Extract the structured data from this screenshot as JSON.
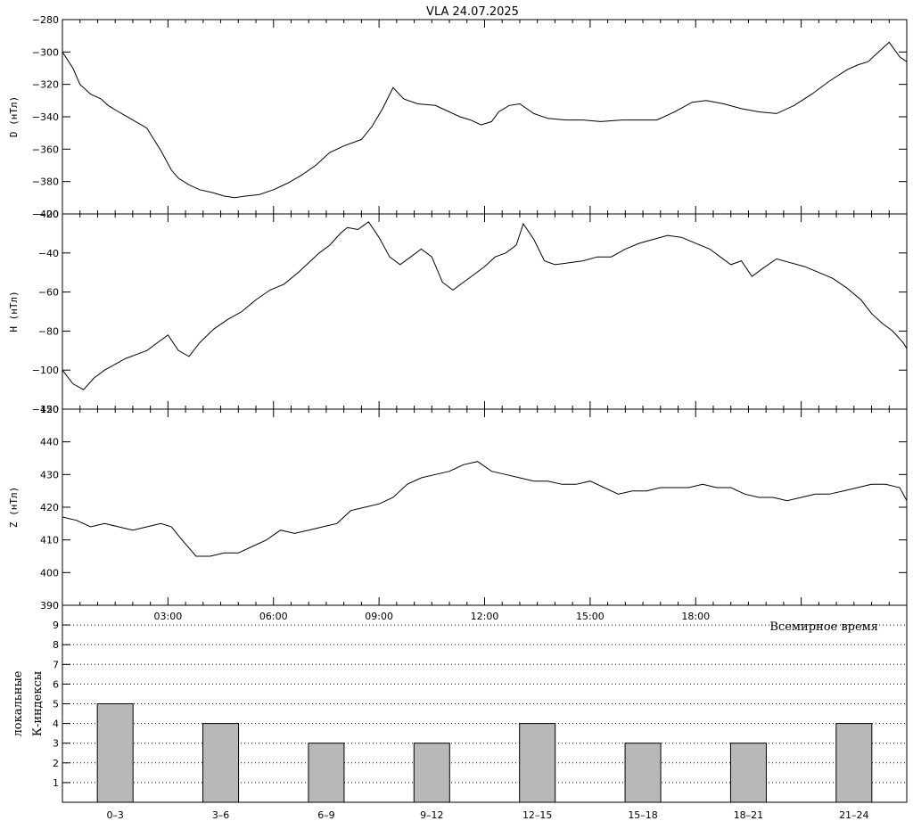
{
  "title": "VLA   24.07.2025",
  "chart_data": [
    {
      "type": "line",
      "ylabel": "D (нТл)",
      "ylim": [
        -400,
        -280
      ],
      "yticks": [
        -400,
        -380,
        -360,
        -340,
        -320,
        -300,
        -280
      ],
      "xlim": [
        0,
        24
      ],
      "x": [
        0,
        0.3,
        0.5,
        0.8,
        1.1,
        1.3,
        1.6,
        2.0,
        2.4,
        2.8,
        3.1,
        3.3,
        3.6,
        3.9,
        4.3,
        4.6,
        4.9,
        5.2,
        5.6,
        6.0,
        6.4,
        6.8,
        7.2,
        7.6,
        8.0,
        8.5,
        8.8,
        9.1,
        9.4,
        9.7,
        10.1,
        10.6,
        11.0,
        11.3,
        11.6,
        11.9,
        12.2,
        12.4,
        12.7,
        13.0,
        13.4,
        13.8,
        14.3,
        14.8,
        15.3,
        15.9,
        16.4,
        16.9,
        17.4,
        17.9,
        18.3,
        18.8,
        19.3,
        19.8,
        20.3,
        20.8,
        21.3,
        21.8,
        22.3,
        22.6,
        22.9,
        23.2,
        23.5,
        23.8,
        24.0
      ],
      "values": [
        -300,
        -310,
        -320,
        -326,
        -329,
        -333,
        -337,
        -342,
        -347,
        -361,
        -373,
        -378,
        -382,
        -385,
        -387,
        -389,
        -390,
        -389,
        -388,
        -385,
        -381,
        -376,
        -370,
        -362,
        -358,
        -354,
        -346,
        -335,
        -322,
        -329,
        -332,
        -333,
        -337,
        -340,
        -342,
        -345,
        -343,
        -337,
        -333,
        -332,
        -338,
        -341,
        -342,
        -342,
        -343,
        -342,
        -342,
        -342,
        -337,
        -331,
        -330,
        -332,
        -335,
        -337,
        -338,
        -333,
        -326,
        -318,
        -311,
        -308,
        -306,
        -300,
        -294,
        -303,
        -306
      ],
      "color": "#000000"
    },
    {
      "type": "line",
      "ylabel": "H (нТл)",
      "ylim": [
        -120,
        -20
      ],
      "yticks": [
        -120,
        -100,
        -80,
        -60,
        -40,
        -20
      ],
      "xlim": [
        0,
        24
      ],
      "x": [
        0,
        0.3,
        0.6,
        0.9,
        1.2,
        1.5,
        1.8,
        2.1,
        2.4,
        2.7,
        3.0,
        3.3,
        3.6,
        3.9,
        4.3,
        4.7,
        5.1,
        5.5,
        5.9,
        6.3,
        6.7,
        7.0,
        7.3,
        7.6,
        7.9,
        8.1,
        8.4,
        8.7,
        9.0,
        9.3,
        9.6,
        9.9,
        10.2,
        10.5,
        10.8,
        11.1,
        11.4,
        11.7,
        12.0,
        12.3,
        12.6,
        12.9,
        13.1,
        13.4,
        13.7,
        14.0,
        14.4,
        14.8,
        15.2,
        15.6,
        16.0,
        16.4,
        16.8,
        17.2,
        17.6,
        18.0,
        18.4,
        18.7,
        19.0,
        19.3,
        19.6,
        19.9,
        20.3,
        20.7,
        21.1,
        21.5,
        21.9,
        22.3,
        22.7,
        23.0,
        23.3,
        23.6,
        23.9,
        24.0
      ],
      "values": [
        -100,
        -107,
        -110,
        -104,
        -100,
        -97,
        -94,
        -92,
        -90,
        -86,
        -82,
        -90,
        -93,
        -86,
        -79,
        -74,
        -70,
        -64,
        -59,
        -56,
        -50,
        -45,
        -40,
        -36,
        -30,
        -27,
        -28,
        -24,
        -32,
        -42,
        -46,
        -42,
        -38,
        -42,
        -55,
        -59,
        -55,
        -51,
        -47,
        -42,
        -40,
        -36,
        -25,
        -33,
        -44,
        -46,
        -45,
        -44,
        -42,
        -42,
        -38,
        -35,
        -33,
        -31,
        -32,
        -35,
        -38,
        -42,
        -46,
        -44,
        -52,
        -48,
        -43,
        -45,
        -47,
        -50,
        -53,
        -58,
        -64,
        -71,
        -76,
        -80,
        -86,
        -89
      ],
      "color": "#000000"
    },
    {
      "type": "line",
      "ylabel": "Z (нТл)",
      "ylim": [
        390,
        450
      ],
      "yticks": [
        390,
        400,
        410,
        420,
        430,
        440,
        450
      ],
      "xlim": [
        0,
        24
      ],
      "xticks": [
        "03:00",
        "06:00",
        "09:00",
        "12:00",
        "15:00",
        "18:00"
      ],
      "xtick_values": [
        3,
        6,
        9,
        12,
        15,
        18
      ],
      "xlabel": "Всемирное время",
      "x": [
        0,
        0.4,
        0.8,
        1.2,
        1.6,
        2.0,
        2.4,
        2.8,
        3.1,
        3.4,
        3.8,
        4.2,
        4.6,
        5.0,
        5.4,
        5.8,
        6.2,
        6.6,
        7.0,
        7.4,
        7.8,
        8.2,
        8.6,
        9.0,
        9.4,
        9.8,
        10.2,
        10.6,
        11.0,
        11.4,
        11.8,
        12.2,
        12.6,
        13.0,
        13.4,
        13.8,
        14.2,
        14.6,
        15.0,
        15.4,
        15.8,
        16.2,
        16.6,
        17.0,
        17.4,
        17.8,
        18.2,
        18.6,
        19.0,
        19.4,
        19.8,
        20.2,
        20.6,
        21.0,
        21.4,
        21.8,
        22.2,
        22.6,
        23.0,
        23.4,
        23.8,
        24.0
      ],
      "values": [
        417,
        416,
        414,
        415,
        414,
        413,
        414,
        415,
        414,
        410,
        405,
        405,
        406,
        406,
        408,
        410,
        413,
        412,
        413,
        414,
        415,
        419,
        420,
        421,
        423,
        427,
        429,
        430,
        431,
        433,
        434,
        431,
        430,
        429,
        428,
        428,
        427,
        427,
        428,
        426,
        424,
        425,
        425,
        426,
        426,
        426,
        427,
        426,
        426,
        424,
        423,
        423,
        422,
        423,
        424,
        424,
        425,
        426,
        427,
        427,
        426,
        422
      ],
      "color": "#000000"
    },
    {
      "type": "bar",
      "ylabel": "К-индексы",
      "ylabel2": "локальные",
      "ylim": [
        0,
        10
      ],
      "yticks": [
        1,
        2,
        3,
        4,
        5,
        6,
        7,
        8,
        9
      ],
      "categories": [
        "0–3",
        "3–6",
        "6–9",
        "9–12",
        "12–15",
        "15–18",
        "18–21",
        "21–24"
      ],
      "values": [
        5,
        4,
        3,
        3,
        4,
        3,
        3,
        4
      ],
      "bar_color": "#b8b8b8",
      "grid": "dotted horizontal"
    }
  ]
}
